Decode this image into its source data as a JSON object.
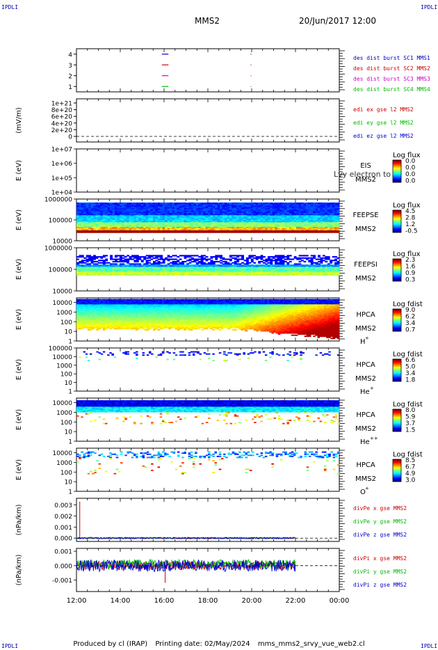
{
  "header": {
    "corner_label": "IPDLI",
    "title": "MMS2",
    "date": "20/Jun/2017 12:00"
  },
  "footer": {
    "produced_by": "Produced by cl (IRAP)",
    "printing_date": "Printing date: 02/May/2024",
    "file": "mms_mms2_srvy_vue_web2.cl"
  },
  "overlap_text": "Lvy electron to",
  "colors": {
    "red": "#cc0000",
    "green": "#00bb00",
    "blue": "#0000cc",
    "magenta": "#cc00cc",
    "dashed": "#000000"
  },
  "chart_data": [
    {
      "type": "line",
      "panel": "burst_flags",
      "ylim": [
        0.5,
        4.5
      ],
      "y_ticks": [
        "1",
        "2",
        "3",
        "4"
      ],
      "xlim": [
        12,
        24
      ],
      "x_ticks": [
        "12:00",
        "14:00",
        "16:00",
        "18:00",
        "20:00",
        "22:00",
        "00:00"
      ],
      "series": [
        {
          "name": "des dist burst SC1 MMS1",
          "color": "#0000cc",
          "level": 4,
          "segments": [
            [
              15.9,
              16.2
            ]
          ],
          "dots": [
            19.95
          ]
        },
        {
          "name": "des dist burst SC2 MMS2",
          "color": "#cc0000",
          "level": 3,
          "segments": [
            [
              15.9,
              16.2
            ]
          ],
          "dots": [
            19.95
          ]
        },
        {
          "name": "des dist burst SC3 MMS3",
          "color": "#cc00cc",
          "level": 2,
          "segments": [
            [
              15.9,
              16.2
            ]
          ],
          "dots": [
            19.95
          ]
        },
        {
          "name": "des dist burst SC4 MMS4",
          "color": "#00bb00",
          "level": 1,
          "segments": [
            [
              15.9,
              16.2
            ]
          ],
          "dots": [
            19.95
          ]
        }
      ]
    },
    {
      "type": "line",
      "panel": "edi",
      "ylabel": "(mV/m)",
      "y_ticks": [
        "0",
        "2e+20",
        "4e+20",
        "6e+20",
        "8e+20",
        "1e+21"
      ],
      "ylim": [
        0,
        1e+21
      ],
      "series": [
        {
          "name": "edi ex gse l2 MMS2",
          "color": "#cc0000",
          "values": []
        },
        {
          "name": "edi ey gse l2 MMS2",
          "color": "#00bb00",
          "values": []
        },
        {
          "name": "edi ez gse l2 MMS2",
          "color": "#0000cc",
          "values": []
        }
      ]
    },
    {
      "type": "heatmap",
      "panel": "eis",
      "ylabel": "E (eV)",
      "y_ticks": [
        "1e+04",
        "1e+05",
        "1e+06",
        "1e+07"
      ],
      "instrument": "EIS",
      "spacecraft": "MMS2",
      "colorbar_label": "Log flux",
      "colorbar_ticks": [
        "0.0",
        "0.0",
        "0.0",
        "0.0"
      ],
      "log_y": true
    },
    {
      "type": "heatmap",
      "panel": "feepse",
      "ylabel": "E (eV)",
      "y_ticks": [
        "10000",
        "100000",
        "1000000"
      ],
      "ylim": [
        10000,
        1000000
      ],
      "instrument": "FEEPSE",
      "spacecraft": "MMS2",
      "colorbar_label": "Log flux",
      "colorbar_ticks": [
        "4.5",
        "2.8",
        "1.2",
        "-0.5"
      ],
      "log_y": true
    },
    {
      "type": "heatmap",
      "panel": "feepsi",
      "ylabel": "E (eV)",
      "y_ticks": [
        "10000",
        "100000",
        "1000000"
      ],
      "ylim": [
        10000,
        1000000
      ],
      "instrument": "FEEPSI",
      "spacecraft": "MMS2",
      "colorbar_label": "Log flux",
      "colorbar_ticks": [
        "2.3",
        "1.6",
        "0.9",
        "0.3"
      ],
      "log_y": true
    },
    {
      "type": "heatmap",
      "panel": "hpca_h",
      "ylabel": "E (eV)",
      "y_ticks": [
        "1",
        "10",
        "100",
        "1000",
        "10000"
      ],
      "ylim": [
        1,
        30000
      ],
      "instrument": "HPCA",
      "spacecraft": "MMS2",
      "species": "H",
      "species_charge": "+",
      "colorbar_label": "Log fdist",
      "colorbar_ticks": [
        "9.0",
        "6.2",
        "3.4",
        "0.7"
      ],
      "log_y": true
    },
    {
      "type": "heatmap",
      "panel": "hpca_he",
      "ylabel": "E (eV)",
      "y_ticks": [
        "1",
        "10",
        "100",
        "1000",
        "10000",
        "100000"
      ],
      "ylim": [
        1,
        100000
      ],
      "instrument": "HPCA",
      "spacecraft": "MMS2",
      "species": "He",
      "species_charge": "+",
      "colorbar_label": "Log fdist",
      "colorbar_ticks": [
        "6.6",
        "5.0",
        "3.4",
        "1.8"
      ],
      "log_y": true
    },
    {
      "type": "heatmap",
      "panel": "hpca_hepp",
      "ylabel": "E (eV)",
      "y_ticks": [
        "1",
        "10",
        "100",
        "1000",
        "10000"
      ],
      "ylim": [
        1,
        30000
      ],
      "instrument": "HPCA",
      "spacecraft": "MMS2",
      "species": "He",
      "species_charge": "++",
      "colorbar_label": "Log fdist",
      "colorbar_ticks": [
        "8.0",
        "5.9",
        "3.7",
        "1.5"
      ],
      "log_y": true
    },
    {
      "type": "heatmap",
      "panel": "hpca_o",
      "ylabel": "E (eV)",
      "y_ticks": [
        "1",
        "10",
        "100",
        "1000",
        "10000"
      ],
      "ylim": [
        1,
        30000
      ],
      "instrument": "HPCA",
      "spacecraft": "MMS2",
      "species": "O",
      "species_charge": "+",
      "colorbar_label": "Log fdist",
      "colorbar_ticks": [
        "8.5",
        "6.7",
        "4.9",
        "3.0"
      ],
      "log_y": true
    },
    {
      "type": "line",
      "panel": "divpe",
      "ylabel": "(nPa/km)",
      "y_ticks": [
        "0.000",
        "0.001",
        "0.002",
        "0.003"
      ],
      "ylim": [
        -0.0003,
        0.0036
      ],
      "series": [
        {
          "name": "divPe x gse MMS2",
          "color": "#cc0000",
          "spike": [
            12.15,
            0.0033
          ],
          "range": [
            12,
            22
          ]
        },
        {
          "name": "divPe y gse MMS2",
          "color": "#00bb00",
          "range": [
            12,
            22
          ]
        },
        {
          "name": "divPe z gse MMS2",
          "color": "#0000cc",
          "range": [
            12,
            22
          ]
        }
      ]
    },
    {
      "type": "line",
      "panel": "divpi",
      "ylabel": "(nPa/km)",
      "y_ticks": [
        "-0.001",
        "0.000",
        "0.001"
      ],
      "ylim": [
        -0.0018,
        0.0012
      ],
      "series": [
        {
          "name": "divPi x gse MMS2",
          "color": "#cc0000",
          "spike": [
            16.05,
            -0.0012
          ],
          "range": [
            12,
            22
          ]
        },
        {
          "name": "divPi y gse MMS2",
          "color": "#00bb00",
          "range": [
            12,
            22
          ]
        },
        {
          "name": "divPi z gse MMS2",
          "color": "#0000cc",
          "range": [
            12,
            22
          ]
        }
      ]
    }
  ]
}
